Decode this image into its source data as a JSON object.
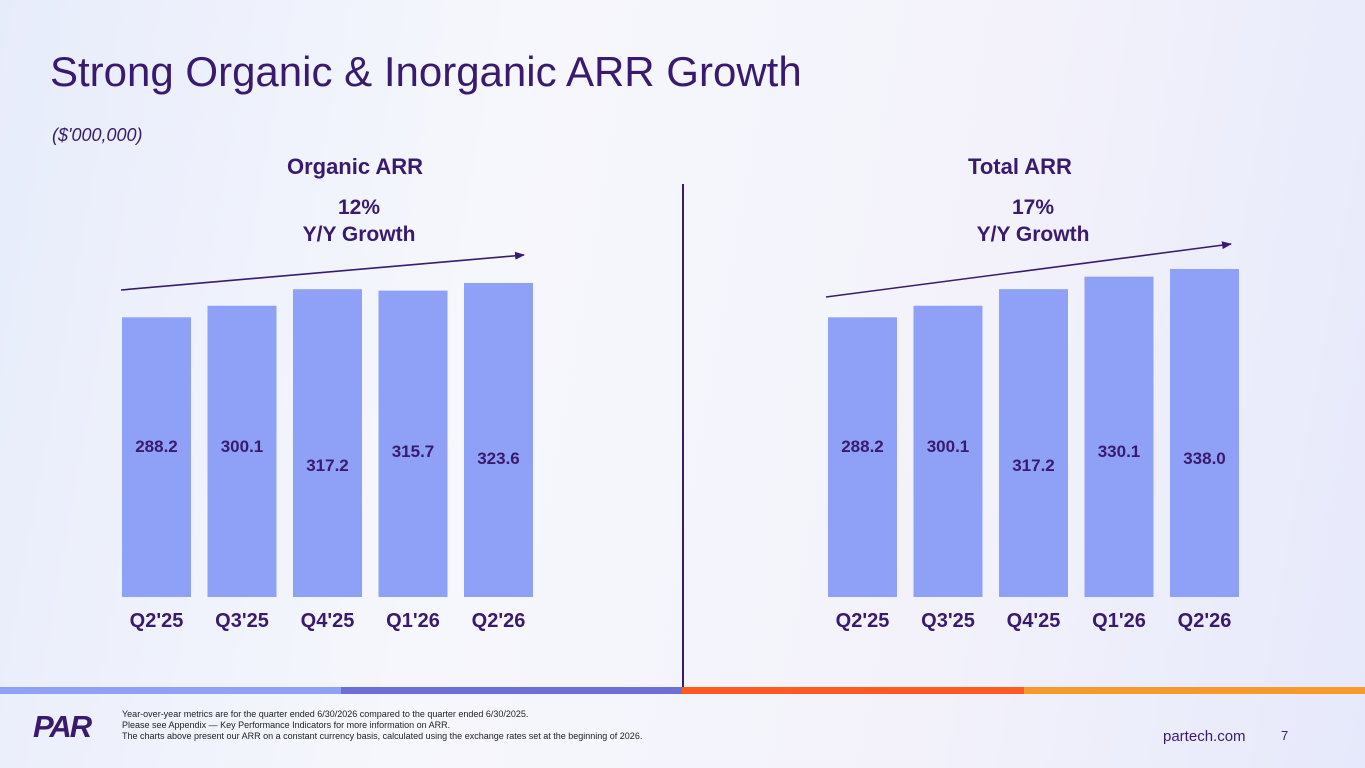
{
  "title": "Strong Organic & Inorganic ARR Growth",
  "units": "($'000,000)",
  "colors": {
    "bar": "#8fa1f6",
    "text": "#3a1a6e",
    "stripes": [
      "#8fa1f6",
      "#6b6fd6",
      "#ff5a22",
      "#f7992b"
    ]
  },
  "chart_data": [
    {
      "type": "bar",
      "title": "Organic ARR",
      "annotation": {
        "value": "12%",
        "label": "Y/Y Growth"
      },
      "categories": [
        "Q2'25",
        "Q3'25",
        "Q4'25",
        "Q1'26",
        "Q2'26"
      ],
      "values": [
        288.2,
        300.1,
        317.2,
        315.7,
        323.6
      ]
    },
    {
      "type": "bar",
      "title": "Total ARR",
      "annotation": {
        "value": "17%",
        "label": "Y/Y Growth"
      },
      "categories": [
        "Q2'25",
        "Q3'25",
        "Q4'25",
        "Q1'26",
        "Q2'26"
      ],
      "values": [
        288.2,
        300.1,
        317.2,
        330.1,
        338.0
      ]
    }
  ],
  "footer": {
    "logo_text": "PAR",
    "notes": [
      "Year-over-year metrics are for the quarter ended 6/30/2026 compared to the quarter ended 6/30/2025.",
      "Please see Appendix — Key Performance Indicators for more information on ARR.",
      "The charts above present our ARR on a constant currency basis, calculated using the exchange rates set at the beginning of 2026."
    ],
    "site": "partech.com",
    "page": "7"
  }
}
